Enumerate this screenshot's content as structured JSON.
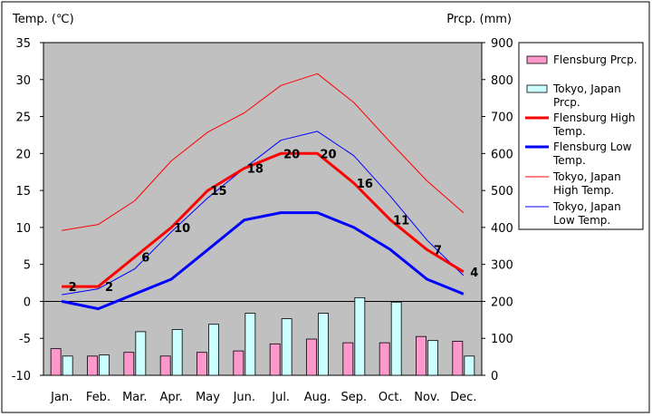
{
  "chart_data": {
    "type": "bar+line",
    "left_axis_title": "Temp. (℃)",
    "right_axis_title": "Prcp. (mm)",
    "months": [
      "Jan.",
      "Feb.",
      "Mar.",
      "Apr.",
      "May",
      "Jun.",
      "Jul.",
      "Aug.",
      "Sep.",
      "Oct.",
      "Nov.",
      "Dec."
    ],
    "temp_axis": {
      "min": -10,
      "max": 35,
      "ticks": [
        -10,
        -5,
        0,
        5,
        10,
        15,
        20,
        25,
        30,
        35
      ]
    },
    "prcp_axis": {
      "min": 0,
      "max": 900,
      "ticks": [
        0,
        100,
        200,
        300,
        400,
        500,
        600,
        700,
        800,
        900
      ]
    },
    "grid": false,
    "legend_position": "right",
    "series": [
      {
        "name": "Flensburg Prcp.",
        "axis": "prcp",
        "kind": "bar",
        "color": "#ff99cc",
        "values": [
          72,
          52,
          62,
          52,
          62,
          66,
          85,
          98,
          88,
          88,
          105,
          92
        ]
      },
      {
        "name": "Tokyo, Japan Prcp.",
        "axis": "prcp",
        "kind": "bar",
        "color": "#ccffff",
        "values": [
          52,
          55,
          118,
          124,
          138,
          168,
          153,
          168,
          210,
          198,
          94,
          52
        ]
      },
      {
        "name": "Flensburg High Temp.",
        "axis": "temp",
        "kind": "line",
        "color": "#ff0000",
        "width": 3,
        "values": [
          2,
          2,
          6,
          10,
          15,
          18,
          20,
          20,
          16,
          11,
          7,
          4
        ],
        "labels": [
          "2",
          "2",
          "6",
          "10",
          "15",
          "18",
          "20",
          "20",
          "16",
          "11",
          "7",
          "4"
        ]
      },
      {
        "name": "Flensburg Low Temp.",
        "axis": "temp",
        "kind": "line",
        "color": "#0000ff",
        "width": 3,
        "values": [
          0,
          -1,
          1,
          3,
          7,
          11,
          12,
          12,
          10,
          7,
          3,
          1
        ]
      },
      {
        "name": "Tokyo, Japan High Temp.",
        "axis": "temp",
        "kind": "line",
        "color": "#ff0000",
        "width": 1,
        "values": [
          9.6,
          10.4,
          13.6,
          19,
          22.9,
          25.5,
          29.2,
          30.8,
          26.9,
          21.5,
          16.3,
          12
        ]
      },
      {
        "name": "Tokyo, Japan Low Temp.",
        "axis": "temp",
        "kind": "line",
        "color": "#0000ff",
        "width": 1,
        "values": [
          0.9,
          1.7,
          4.4,
          9.4,
          14,
          18,
          21.8,
          23,
          19.7,
          14.2,
          8.3,
          3.5
        ]
      }
    ]
  }
}
